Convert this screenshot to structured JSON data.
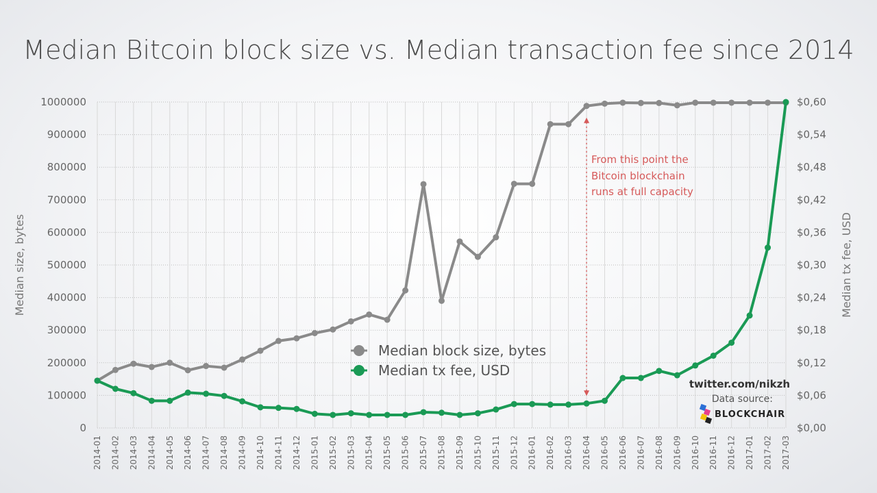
{
  "chart_data": {
    "type": "line",
    "title": "Median Bitcoin block size vs. Median transaction fee since 2014",
    "x": [
      "2014-01",
      "2014-02",
      "2014-03",
      "2014-04",
      "2014-05",
      "2014-06",
      "2014-07",
      "2014-08",
      "2014-09",
      "2014-10",
      "2014-11",
      "2014-12",
      "2015-01",
      "2015-02",
      "2015-03",
      "2015-04",
      "2015-05",
      "2015-06",
      "2015-07",
      "2015-08",
      "2015-09",
      "2015-10",
      "2015-11",
      "2015-12",
      "2016-01",
      "2016-02",
      "2016-03",
      "2016-04",
      "2016-05",
      "2016-06",
      "2016-07",
      "2016-08",
      "2016-09",
      "2016-10",
      "2016-11",
      "2016-12",
      "2017-01",
      "2017-02",
      "2017-03"
    ],
    "ylabel_left": "Median size, bytes",
    "ylabel_right": "Median tx fee, USD",
    "ylim_left": [
      0,
      1000000
    ],
    "ylim_right": [
      0,
      0.6
    ],
    "yticks_left": [
      "0",
      "100000",
      "200000",
      "300000",
      "400000",
      "500000",
      "600000",
      "700000",
      "800000",
      "900000",
      "1000000"
    ],
    "yticks_right": [
      "$0,00",
      "$0,06",
      "$0,12",
      "$0,18",
      "$0,24",
      "$0,30",
      "$0,36",
      "$0,42",
      "$0,48",
      "$0,54",
      "$0,60"
    ],
    "grid": true,
    "legend_position": "center",
    "series": [
      {
        "name": "Median block size, bytes",
        "axis": "left",
        "color": "#8a8a8a",
        "values": [
          145000,
          178000,
          197000,
          187000,
          200000,
          177000,
          190000,
          185000,
          210000,
          237000,
          267000,
          275000,
          291000,
          302000,
          327000,
          348000,
          332000,
          422000,
          748000,
          390000,
          572000,
          525000,
          585000,
          749000,
          749000,
          932000,
          932000,
          988000,
          995000,
          998000,
          997000,
          997000,
          990000,
          998000,
          998000,
          998000,
          998000,
          998000,
          998000
        ]
      },
      {
        "name": "Median tx fee, USD",
        "axis": "right",
        "color": "#1a9a55",
        "values": [
          0.087,
          0.072,
          0.064,
          0.05,
          0.05,
          0.065,
          0.063,
          0.059,
          0.049,
          0.038,
          0.037,
          0.035,
          0.026,
          0.024,
          0.027,
          0.024,
          0.024,
          0.024,
          0.029,
          0.028,
          0.024,
          0.027,
          0.034,
          0.044,
          0.044,
          0.043,
          0.043,
          0.045,
          0.05,
          0.092,
          0.092,
          0.105,
          0.097,
          0.115,
          0.133,
          0.157,
          0.207,
          0.332,
          0.6
        ]
      }
    ],
    "annotation": {
      "lines": [
        "From this point the",
        "Bitcoin blockchain",
        "runs at full capacity"
      ],
      "x": "2016-04",
      "color": "#d65a5a"
    }
  },
  "credits": {
    "twitter": "twitter.com/nikzh",
    "source_label": "Data source:",
    "brand": "BLOCKCHAIR"
  }
}
